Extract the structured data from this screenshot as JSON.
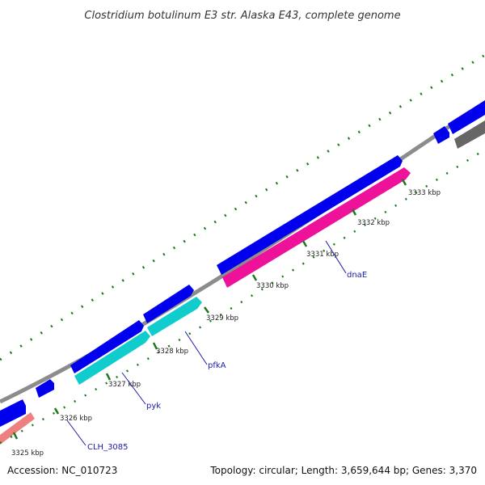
{
  "title": "Clostridium botulinum E3 str. Alaska E43, complete genome",
  "footer": {
    "accession": "Accession: NC_010723",
    "summary": "Topology: circular; Length: 3,659,644 bp; Genes: 3,370"
  },
  "colors": {
    "backbone": "#8c8c8c",
    "forward_gene": "#0000ee",
    "reverse_gene_magenta": "#ee1199",
    "reverse_gene_cyan": "#11cccc",
    "reverse_gene_salmon": "#ee8080",
    "reverse_gene_gray": "#666666",
    "gc_dots": "#1a7a1a",
    "tick": "#1a7a1a",
    "gene_label": "#1a1aa8"
  },
  "ticks": [
    {
      "label": "3325 kbp"
    },
    {
      "label": "3326 kbp"
    },
    {
      "label": "3327 kbp"
    },
    {
      "label": "3328 kbp"
    },
    {
      "label": "3329 kbp"
    },
    {
      "label": "3330 kbp"
    },
    {
      "label": "3331 kbp"
    },
    {
      "label": "3332 kbp"
    },
    {
      "label": "3333 kbp"
    }
  ],
  "gene_labels": [
    {
      "name": "CLH_3085"
    },
    {
      "name": "pyk"
    },
    {
      "name": "pfkA"
    },
    {
      "name": "dnaE"
    }
  ]
}
